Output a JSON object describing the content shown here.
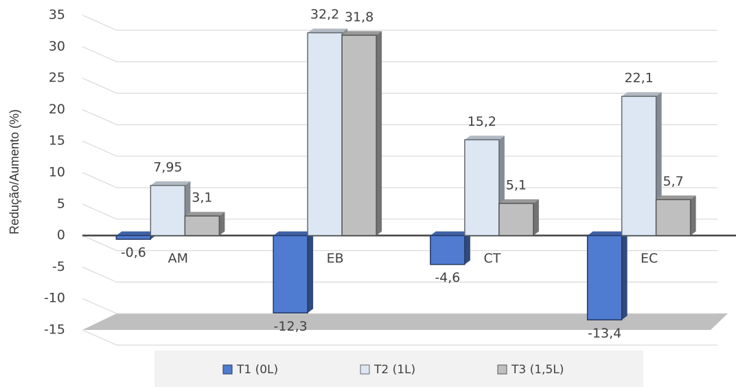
{
  "chart_data": {
    "type": "bar",
    "y_label": "Redução/Aumento (%)",
    "categories": [
      "AM",
      "EB",
      "CT",
      "EC"
    ],
    "series": [
      {
        "name": "T1 (0L)",
        "color": "#4f7bd0",
        "values": [
          -0.6,
          -12.3,
          -4.6,
          -13.4
        ],
        "value_labels": [
          "-0,6",
          "-12,3",
          "-4,6",
          "-13,4"
        ]
      },
      {
        "name": "T2 (1L)",
        "color": "#dde7f3",
        "values": [
          7.95,
          32.2,
          15.2,
          22.1
        ],
        "value_labels": [
          "7,95",
          "32,2",
          "15,2",
          "22,1"
        ]
      },
      {
        "name": "T3 (1,5L)",
        "color": "#bfbfbf",
        "values": [
          3.1,
          31.8,
          5.1,
          5.7
        ],
        "value_labels": [
          "3,1",
          "31,8",
          "5,1",
          "5,7"
        ]
      }
    ],
    "ylim": [
      -15,
      35
    ],
    "yticks": [
      -15,
      -10,
      -5,
      0,
      5,
      10,
      15,
      20,
      25,
      30,
      35
    ],
    "grid": true
  }
}
